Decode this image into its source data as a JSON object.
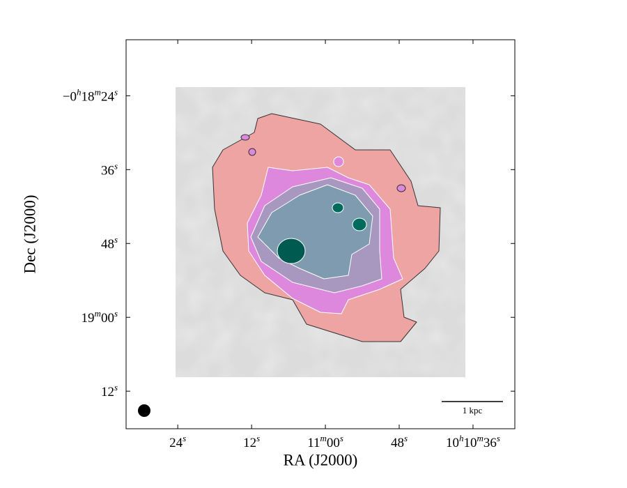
{
  "chart_data": {
    "type": "image",
    "xlabel": "RA (J2000)",
    "ylabel": "Dec (J2000)",
    "xlim": [
      36692.4,
      36629.2
    ],
    "xticks": [
      {
        "value": 36684,
        "label": "24s"
      },
      {
        "value": 36672,
        "label": "12s"
      },
      {
        "value": 36660,
        "label": "11m00s"
      },
      {
        "value": 36648,
        "label": "48s"
      },
      {
        "value": 36636,
        "label": "10h10m36s"
      }
    ],
    "ylim": [
      -1158.1,
      -1094.9
    ],
    "yticks": [
      {
        "value": -1104,
        "label": "−0h18m24s"
      },
      {
        "value": -1116,
        "label": "36s"
      },
      {
        "value": -1128,
        "label": "48s"
      },
      {
        "value": -1140,
        "label": "19m00s"
      },
      {
        "value": -1152,
        "label": "12s"
      }
    ],
    "scalebar_label": "1 kpc"
  }
}
